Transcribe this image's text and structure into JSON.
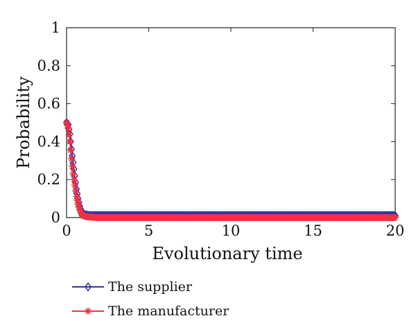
{
  "chart_data": {
    "type": "line",
    "title": "",
    "xlabel": "Evolutionary time",
    "ylabel": "Probability",
    "xlim": [
      0,
      20
    ],
    "ylim": [
      0,
      1
    ],
    "x_ticks": [
      "0",
      "5",
      "10",
      "15",
      "20"
    ],
    "y_ticks": [
      "0",
      "0.2",
      "0.4",
      "0.6",
      "0.8",
      "1"
    ],
    "grid": false,
    "legend_placement": "below",
    "series": [
      {
        "name": "The supplier",
        "color": "#3535a0",
        "marker": "diamond",
        "x": [
          0,
          0.1,
          0.2,
          0.3,
          0.4,
          0.5,
          0.6,
          0.7,
          0.8,
          0.9,
          1.0,
          1.2,
          1.5,
          2,
          3,
          4,
          5,
          6,
          7,
          8,
          9,
          10,
          11,
          12,
          13,
          14,
          15,
          16,
          17,
          18,
          19,
          20
        ],
        "values": [
          0.5,
          0.49,
          0.44,
          0.36,
          0.29,
          0.22,
          0.15,
          0.1,
          0.06,
          0.03,
          0.02,
          0.012,
          0.01,
          0.01,
          0.01,
          0.01,
          0.01,
          0.01,
          0.01,
          0.01,
          0.01,
          0.01,
          0.01,
          0.01,
          0.01,
          0.01,
          0.01,
          0.01,
          0.01,
          0.01,
          0.01,
          0.01
        ]
      },
      {
        "name": "The manufacturer",
        "color": "#ee3344",
        "marker": "star",
        "x": [
          0,
          0.1,
          0.2,
          0.3,
          0.4,
          0.5,
          0.6,
          0.7,
          0.8,
          0.9,
          1.0,
          1.2,
          1.5,
          2,
          3,
          4,
          5,
          6,
          7,
          8,
          9,
          10,
          11,
          12,
          13,
          14,
          15,
          16,
          17,
          18,
          19,
          20
        ],
        "values": [
          0.5,
          0.47,
          0.4,
          0.31,
          0.23,
          0.17,
          0.11,
          0.07,
          0.04,
          0.02,
          0.01,
          0.005,
          0.002,
          0.0,
          0.0,
          0.0,
          0.0,
          0.0,
          0.0,
          0.0,
          0.0,
          0.0,
          0.0,
          0.0,
          0.0,
          0.0,
          0.0,
          0.0,
          0.0,
          0.0,
          0.0,
          0.0
        ]
      }
    ]
  }
}
